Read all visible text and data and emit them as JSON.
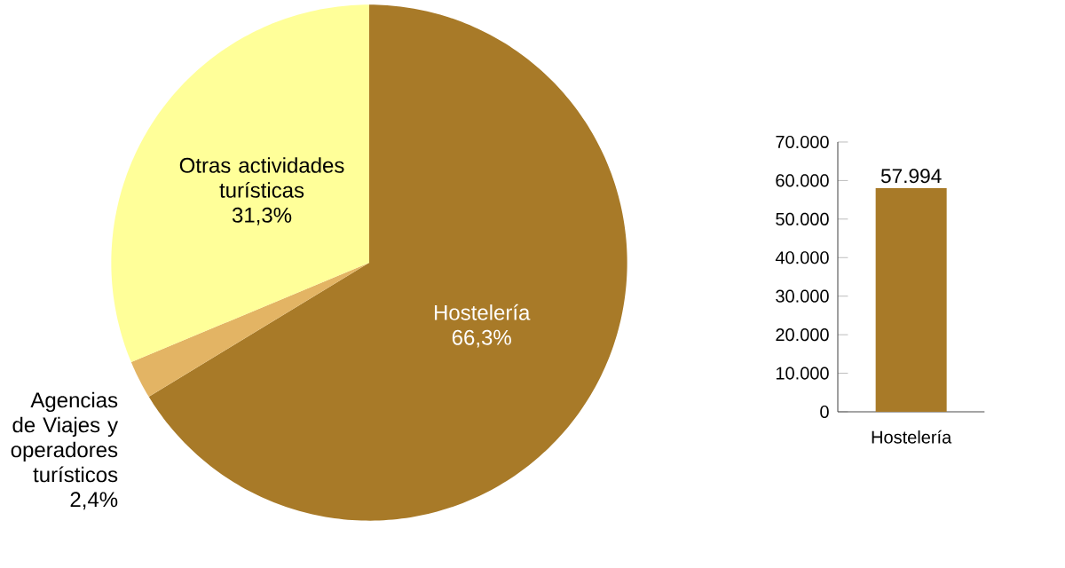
{
  "chart_data": [
    {
      "type": "pie",
      "categories": [
        "Hostelería",
        "Agencias de Viajes y operadores turísticos",
        "Otras actividades turísticas"
      ],
      "values": [
        66.3,
        2.4,
        31.3
      ],
      "colors": [
        "#a87a28",
        "#e3b464",
        "#ffff99"
      ],
      "value_labels": [
        "66,3%",
        "2,4%",
        "31,3%"
      ]
    },
    {
      "type": "bar",
      "categories": [
        "Hostelería"
      ],
      "values": [
        57994
      ],
      "color": "#a87a28",
      "ylim": [
        0,
        70000
      ],
      "yticks": [
        {
          "value": 0,
          "label": "0"
        },
        {
          "value": 10000,
          "label": "10.000"
        },
        {
          "value": 20000,
          "label": "20.000"
        },
        {
          "value": 30000,
          "label": "30.000"
        },
        {
          "value": 40000,
          "label": "40.000"
        },
        {
          "value": 50000,
          "label": "50.000"
        },
        {
          "value": 60000,
          "label": "60.000"
        },
        {
          "value": 70000,
          "label": "70.000"
        }
      ],
      "value_labels": [
        "57.994"
      ]
    }
  ]
}
